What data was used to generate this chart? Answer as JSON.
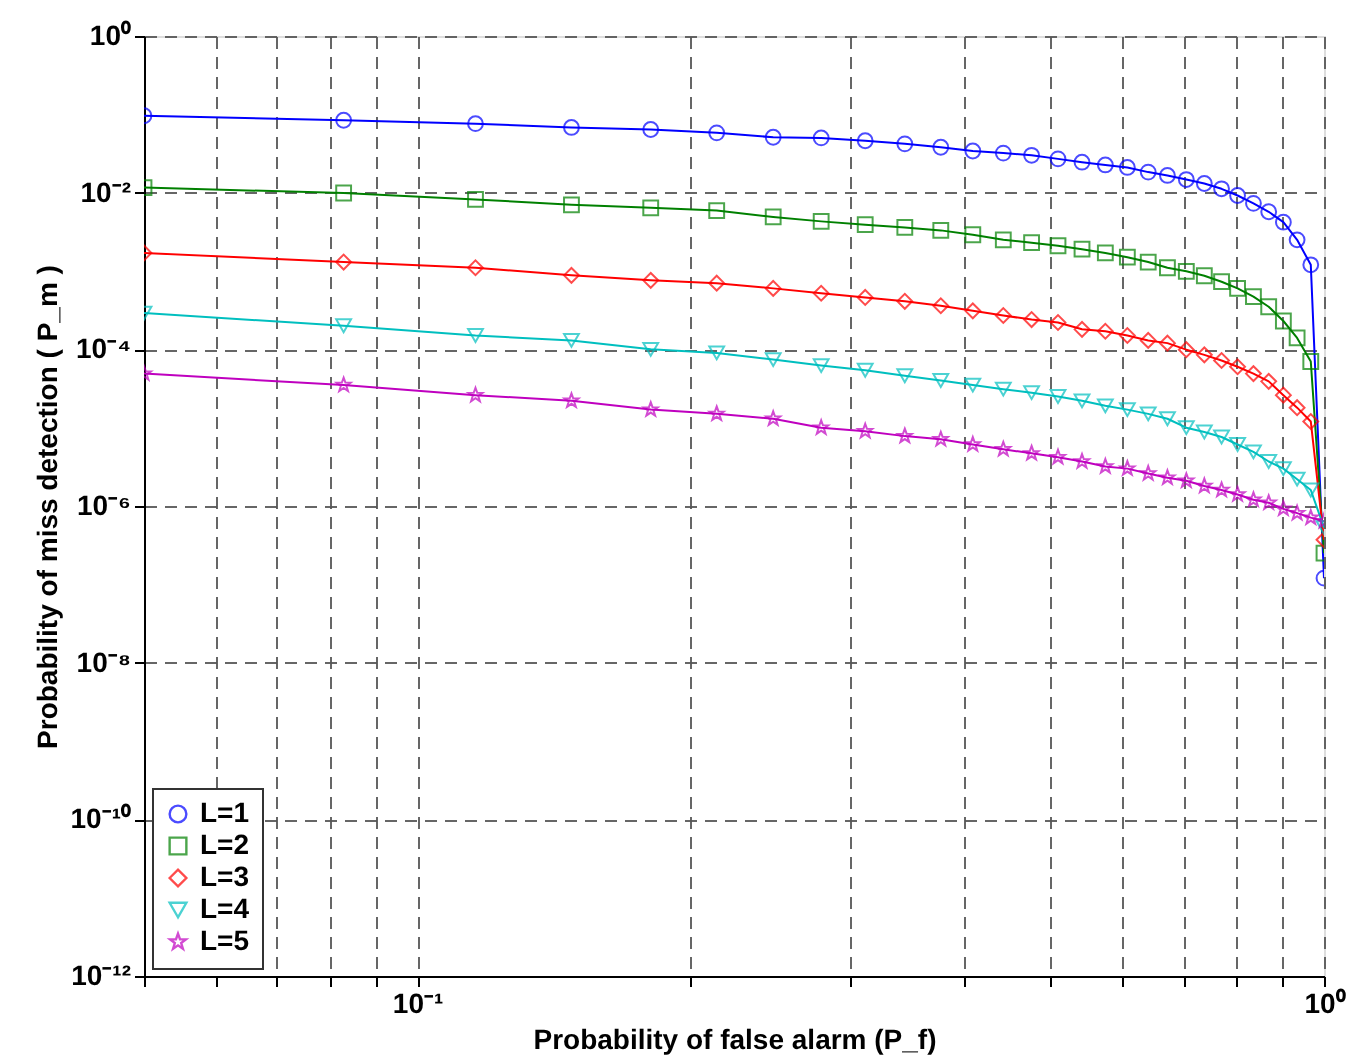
{
  "chart_data": {
    "type": "line",
    "xlabel": "Probability of false alarm (P_f)",
    "ylabel": "Probability of miss detection ( P_m )",
    "log": "xy",
    "grid": true,
    "legend": "bottom left",
    "line_style": "solid",
    "xlim": [
      0.05,
      1
    ],
    "ylim": [
      1e-12,
      1
    ],
    "xticks": [
      {
        "value": 0.05,
        "label": null
      },
      {
        "value": 0.06,
        "label": null
      },
      {
        "value": 0.07,
        "label": null
      },
      {
        "value": 0.08,
        "label": null
      },
      {
        "value": 0.09,
        "label": null
      },
      {
        "value": 0.1,
        "label": "10⁻¹"
      },
      {
        "value": 0.2,
        "label": null
      },
      {
        "value": 0.3,
        "label": null
      },
      {
        "value": 0.4,
        "label": null
      },
      {
        "value": 0.5,
        "label": null
      },
      {
        "value": 0.6,
        "label": null
      },
      {
        "value": 0.7,
        "label": null
      },
      {
        "value": 0.8,
        "label": null
      },
      {
        "value": 0.9,
        "label": null
      },
      {
        "value": 1,
        "label": "10⁰"
      }
    ],
    "yticks": [
      {
        "value": 1e-12,
        "label": "10⁻¹²"
      },
      {
        "value": 1e-10,
        "label": "10⁻¹⁰"
      },
      {
        "value": 1e-08,
        "label": "10⁻⁸"
      },
      {
        "value": 1e-06,
        "label": "10⁻⁶"
      },
      {
        "value": 0.0001,
        "label": "10⁻⁴"
      },
      {
        "value": 0.01,
        "label": "10⁻²"
      },
      {
        "value": 1,
        "label": "10⁰"
      }
    ],
    "x": [
      0.05,
      0.083,
      0.116,
      0.148,
      0.181,
      0.214,
      0.247,
      0.279,
      0.312,
      0.345,
      0.378,
      0.41,
      0.443,
      0.476,
      0.509,
      0.541,
      0.574,
      0.607,
      0.64,
      0.672,
      0.705,
      0.738,
      0.771,
      0.803,
      0.836,
      0.869,
      0.902,
      0.934,
      0.967,
      1.0
    ],
    "series": [
      {
        "name": "L=1",
        "color": "#0000ff",
        "marker": "circle",
        "values": [
          0.096,
          0.084,
          0.076,
          0.068,
          0.064,
          0.058,
          0.051,
          0.05,
          0.046,
          0.042,
          0.038,
          0.034,
          0.032,
          0.03,
          0.027,
          0.0245,
          0.0226,
          0.021,
          0.0183,
          0.0166,
          0.0147,
          0.0131,
          0.0112,
          0.0092,
          0.0073,
          0.0057,
          0.0042,
          0.0025,
          0.0012,
          1.2e-07
        ]
      },
      {
        "name": "L=2",
        "color": "#008000",
        "marker": "square",
        "values": [
          0.0116,
          0.0099,
          0.0082,
          0.007,
          0.0064,
          0.0059,
          0.0049,
          0.0043,
          0.0039,
          0.0036,
          0.0033,
          0.0029,
          0.0025,
          0.0023,
          0.0021,
          0.0019,
          0.0017,
          0.0015,
          0.0013,
          0.0011,
          0.00099,
          0.00087,
          0.00073,
          0.0006,
          0.00047,
          0.00035,
          0.00023,
          0.00014,
          7e-05,
          2.5e-07
        ]
      },
      {
        "name": "L=3",
        "color": "#ff0000",
        "marker": "diamond",
        "values": [
          0.0017,
          0.0013,
          0.0011,
          0.00088,
          0.00076,
          0.0007,
          0.0006,
          0.00052,
          0.00046,
          0.00041,
          0.00036,
          0.00031,
          0.00027,
          0.00024,
          0.00022,
          0.00018,
          0.00017,
          0.00015,
          0.00013,
          0.00012,
          9.9e-05,
          8.5e-05,
          7.2e-05,
          6e-05,
          4.9e-05,
          3.9e-05,
          2.6e-05,
          1.8e-05,
          1.2e-05,
          3.7e-07
        ]
      },
      {
        "name": "L=4",
        "color": "#00bfbf",
        "marker": "triangle",
        "values": [
          0.00029,
          0.0002,
          0.00015,
          0.00013,
          0.0001,
          9e-05,
          7.4e-05,
          6.2e-05,
          5.4e-05,
          4.6e-05,
          4e-05,
          3.5e-05,
          3.1e-05,
          2.8e-05,
          2.5e-05,
          2.2e-05,
          1.9e-05,
          1.7e-05,
          1.5e-05,
          1.3e-05,
          1e-05,
          8.8e-06,
          7.6e-06,
          6.1e-06,
          4.9e-06,
          3.7e-06,
          3e-06,
          2.2e-06,
          1.6e-06,
          5.3e-07
        ]
      },
      {
        "name": "L=5",
        "color": "#bf00bf",
        "marker": "star",
        "values": [
          4.9e-05,
          3.5e-05,
          2.6e-05,
          2.2e-05,
          1.7e-05,
          1.5e-05,
          1.3e-05,
          1e-05,
          9e-06,
          7.8e-06,
          7.1e-06,
          6.1e-06,
          5.3e-06,
          4.7e-06,
          4.2e-06,
          3.7e-06,
          3.2e-06,
          3e-06,
          2.6e-06,
          2.3e-06,
          2.1e-06,
          1.8e-06,
          1.6e-06,
          1.4e-06,
          1.2e-06,
          1.1e-06,
          9.2e-07,
          8.1e-07,
          7.1e-07,
          6.4e-07
        ]
      }
    ]
  }
}
